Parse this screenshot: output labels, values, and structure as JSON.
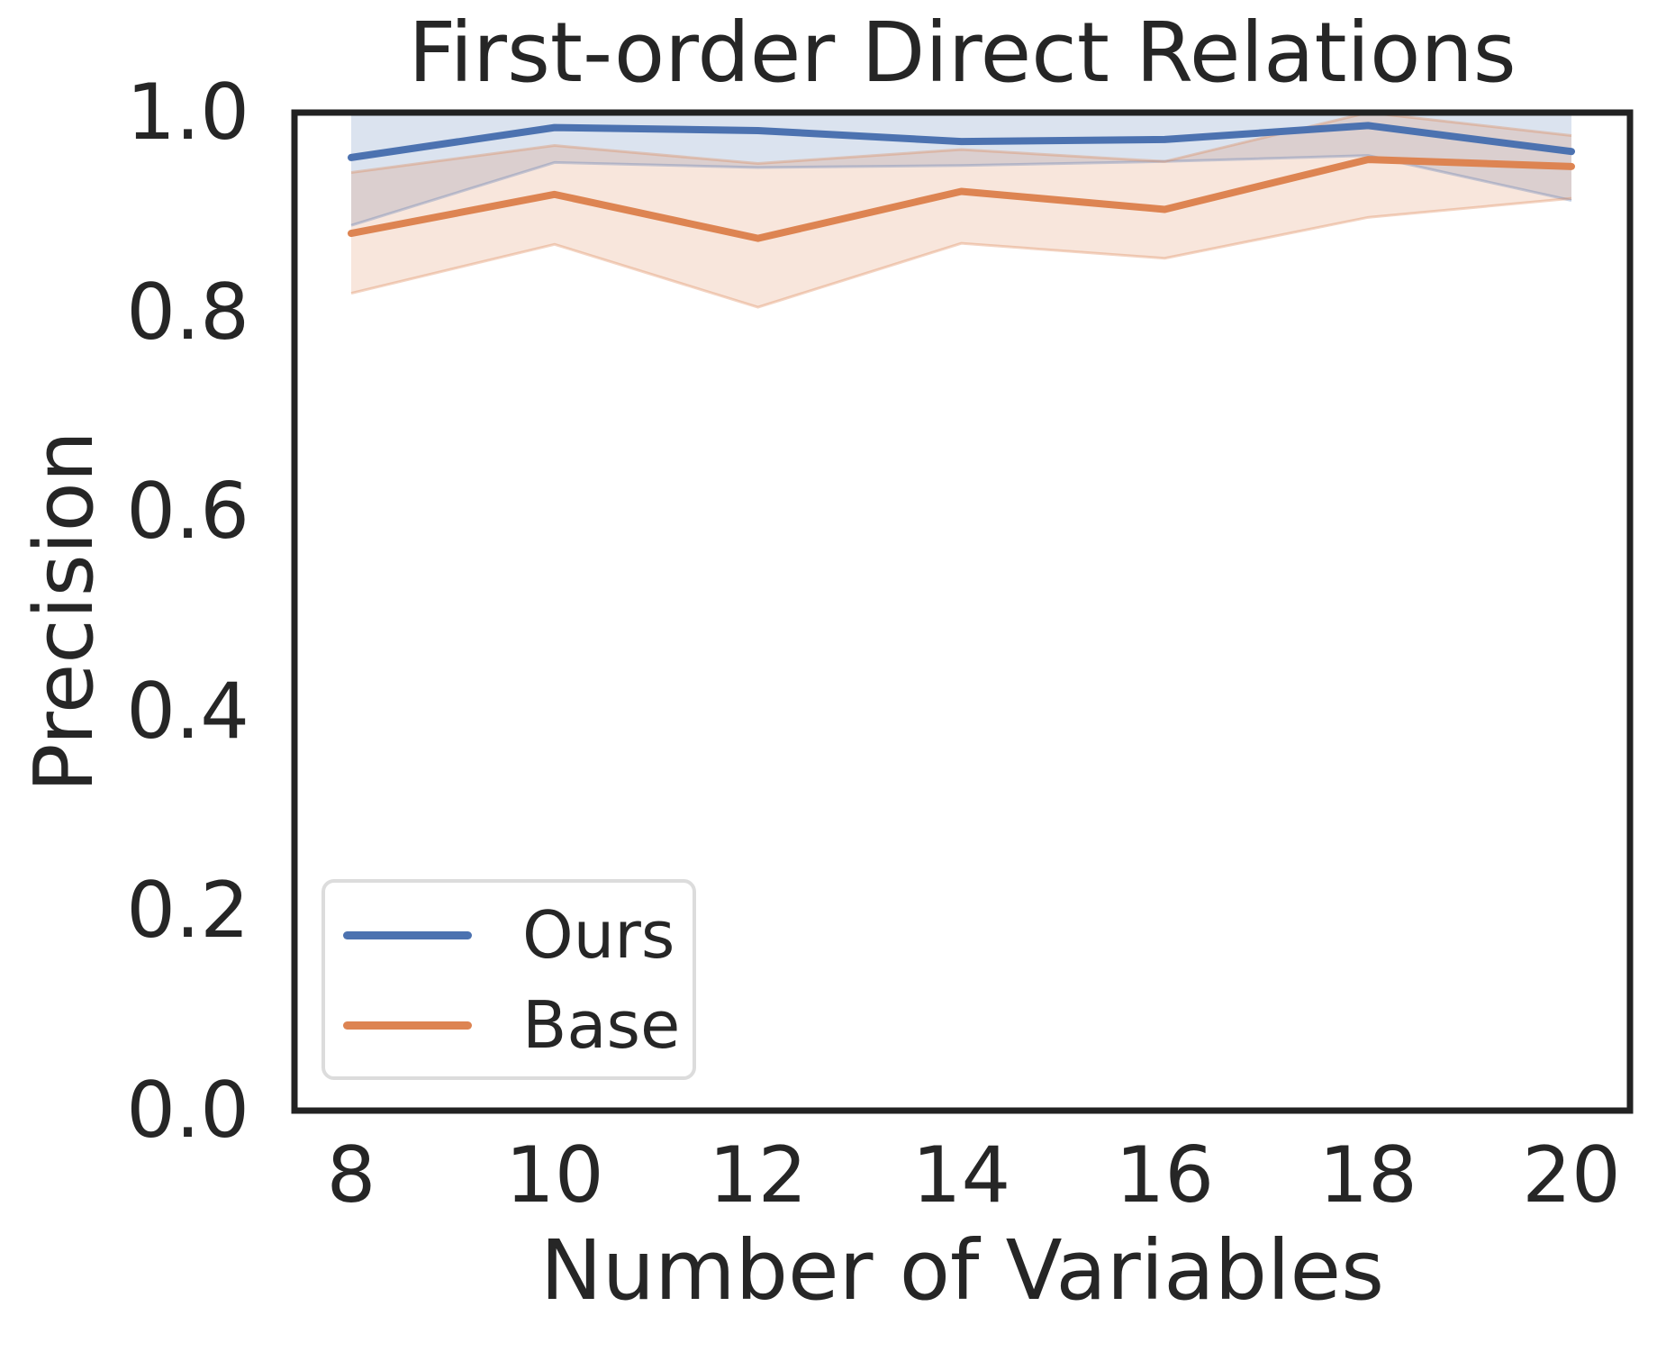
{
  "figure": {
    "background": "#ffffff",
    "text_color": "#262626",
    "frame_color": "#222222"
  },
  "chart_data": {
    "type": "line",
    "title": "First-order Direct Relations",
    "xlabel": "Number of Variables",
    "ylabel": "Precision",
    "x": [
      8,
      10,
      12,
      14,
      16,
      18,
      20
    ],
    "xticks": [
      8,
      10,
      12,
      14,
      16,
      18,
      20
    ],
    "xticklabels": [
      "8",
      "10",
      "12",
      "14",
      "16",
      "18",
      "20"
    ],
    "yticks": [
      1.0,
      0.8,
      0.6,
      0.4,
      0.2,
      0.0
    ],
    "yticklabels": [
      "1.0",
      "0.8",
      "0.6",
      "0.4",
      "0.2",
      "0.0"
    ],
    "xlim": [
      7.44,
      20.58
    ],
    "ylim": [
      0.0,
      1.0
    ],
    "grid": false,
    "legend_position": "lower left",
    "series": [
      {
        "name": "Ours",
        "color": "#4C72B0",
        "band_fill_alpha": 0.2,
        "values": [
          0.955,
          0.985,
          0.982,
          0.971,
          0.973,
          0.987,
          0.961
        ],
        "ci_lower": [
          0.887,
          0.95,
          0.945,
          0.947,
          0.951,
          0.957,
          0.912
        ],
        "ci_upper": [
          1.0,
          1.0,
          1.0,
          1.0,
          1.0,
          1.0,
          1.0
        ]
      },
      {
        "name": "Base",
        "color": "#DD8452",
        "band_fill_alpha": 0.2,
        "values": [
          0.879,
          0.918,
          0.874,
          0.921,
          0.903,
          0.953,
          0.946
        ],
        "ci_lower": [
          0.819,
          0.868,
          0.805,
          0.869,
          0.854,
          0.895,
          0.914
        ],
        "ci_upper": [
          0.94,
          0.967,
          0.949,
          0.963,
          0.951,
          1.0,
          0.977
        ]
      }
    ]
  },
  "legend": {
    "items": [
      {
        "label": "Ours",
        "color": "#4C72B0"
      },
      {
        "label": "Base",
        "color": "#DD8452"
      }
    ]
  }
}
